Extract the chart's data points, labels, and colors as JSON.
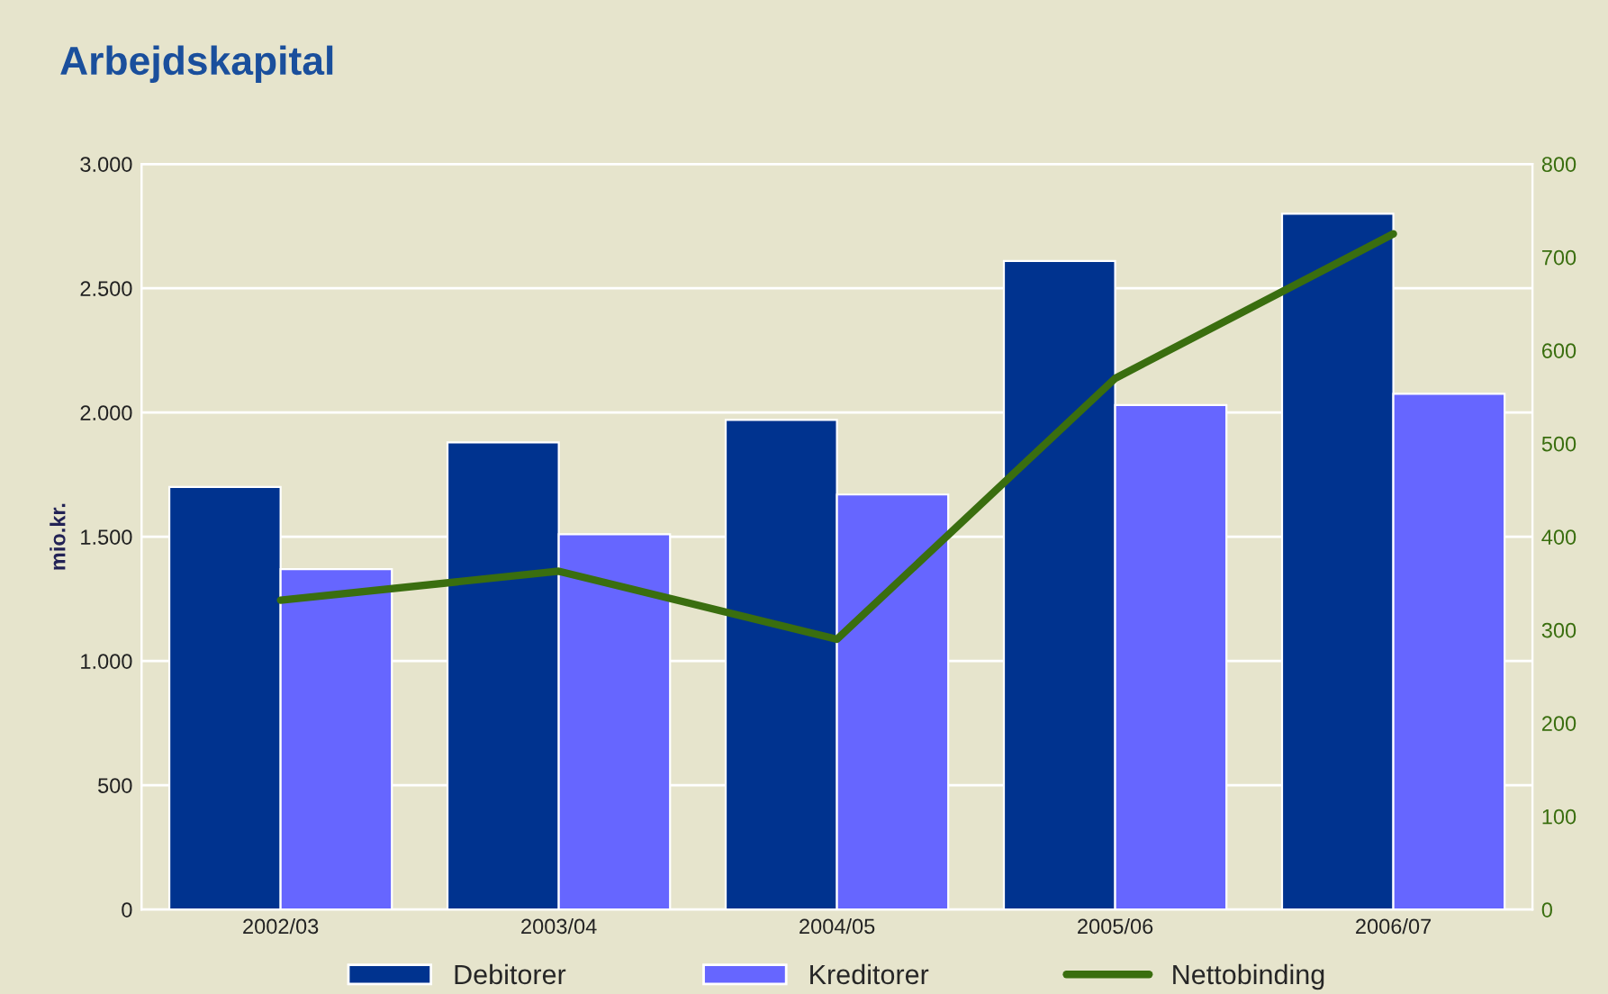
{
  "chart_data": {
    "type": "bar",
    "title": "Arbejdskapital",
    "ylabel": "mio.kr.",
    "categories": [
      "2002/03",
      "2003/04",
      "2004/05",
      "2005/06",
      "2006/07"
    ],
    "series": [
      {
        "name": "Debitorer",
        "color": "#00338f",
        "values": [
          1700,
          1880,
          1970,
          2610,
          2800
        ]
      },
      {
        "name": "Kreditorer",
        "color": "#6666ff",
        "values": [
          1370,
          1510,
          1670,
          2030,
          2075
        ]
      },
      {
        "name": "Nettobinding",
        "type": "line",
        "axis": "y2",
        "color": "#3a6e0f",
        "values": [
          332,
          363,
          290,
          570,
          725
        ]
      }
    ],
    "ylim": [
      0,
      3000
    ],
    "yticks": [
      0,
      500,
      {
        "value": 1000,
        "label": "1.000"
      },
      {
        "value": 1500,
        "label": "1.500"
      },
      {
        "value": 2000,
        "label": "2.000"
      },
      {
        "value": 2500,
        "label": "2.500"
      },
      {
        "value": 3000,
        "label": "3.000"
      }
    ],
    "y2lim": [
      0,
      800
    ],
    "y2ticks": [
      0,
      100,
      200,
      300,
      400,
      500,
      600,
      700,
      800
    ],
    "grid": "y",
    "legend": "bottom",
    "marker": "none",
    "line_style": "solid"
  }
}
